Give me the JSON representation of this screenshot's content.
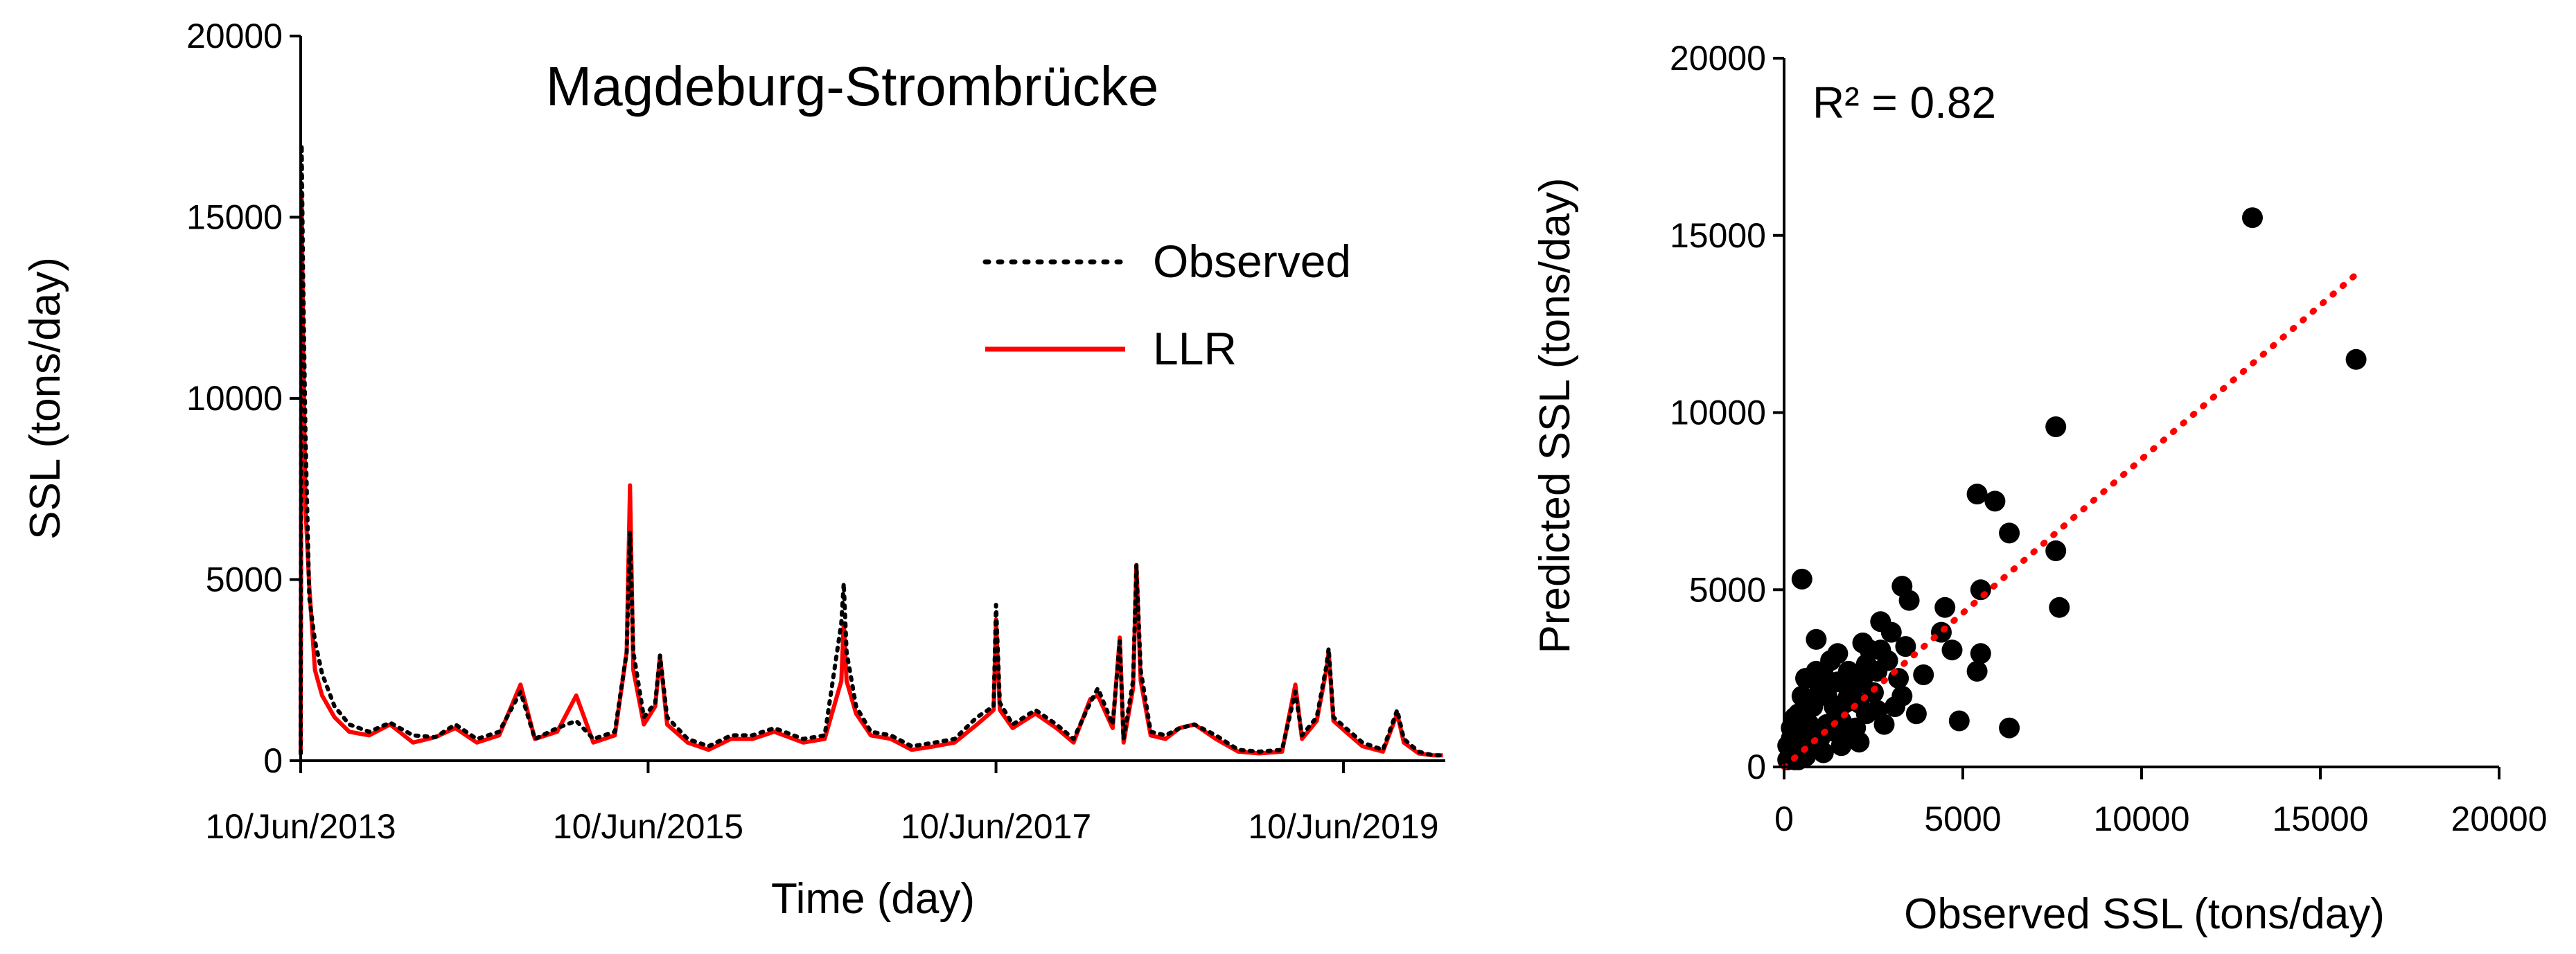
{
  "chart_data": [
    {
      "type": "line",
      "title": "Magdeburg-Strombrücke",
      "xlabel": "Time (day)",
      "ylabel": "SSL (tons/day)",
      "ylim": [
        0,
        20000
      ],
      "yticks": [
        "0",
        "5000",
        "10000",
        "15000",
        "20000"
      ],
      "xticks": [
        {
          "date": "2013-06-10",
          "label": "10/Jun/2013"
        },
        {
          "date": "2015-06-10",
          "label": "10/Jun/2015"
        },
        {
          "date": "2017-06-10",
          "label": "10/Jun/2017"
        },
        {
          "date": "2019-06-10",
          "label": "10/Jun/2019"
        }
      ],
      "xlim": [
        "2013-06-10",
        "2020-01-10"
      ],
      "legend_position": "upper-right",
      "grid": false,
      "series": [
        {
          "name": "Observed",
          "style": "dotted",
          "color": "#000000",
          "points": [
            [
              "2013-06-10",
              200
            ],
            [
              "2013-06-12",
              17000
            ],
            [
              "2013-06-15",
              13500
            ],
            [
              "2013-06-20",
              9000
            ],
            [
              "2013-06-28",
              4500
            ],
            [
              "2013-07-10",
              3300
            ],
            [
              "2013-07-25",
              2400
            ],
            [
              "2013-08-20",
              1500
            ],
            [
              "2013-09-20",
              1000
            ],
            [
              "2013-11-01",
              800
            ],
            [
              "2013-12-15",
              1050
            ],
            [
              "2014-02-01",
              700
            ],
            [
              "2014-03-20",
              650
            ],
            [
              "2014-05-01",
              1000
            ],
            [
              "2014-06-15",
              600
            ],
            [
              "2014-08-01",
              800
            ],
            [
              "2014-09-15",
              1900
            ],
            [
              "2014-10-15",
              600
            ],
            [
              "2014-12-01",
              900
            ],
            [
              "2015-01-10",
              1100
            ],
            [
              "2015-02-15",
              600
            ],
            [
              "2015-04-01",
              800
            ],
            [
              "2015-04-26",
              3000
            ],
            [
              "2015-05-03",
              6300
            ],
            [
              "2015-05-10",
              3000
            ],
            [
              "2015-06-01",
              1200
            ],
            [
              "2015-06-25",
              1600
            ],
            [
              "2015-07-05",
              2900
            ],
            [
              "2015-07-20",
              1200
            ],
            [
              "2015-09-01",
              600
            ],
            [
              "2015-10-15",
              400
            ],
            [
              "2015-12-01",
              700
            ],
            [
              "2016-01-15",
              700
            ],
            [
              "2016-03-01",
              900
            ],
            [
              "2016-05-01",
              600
            ],
            [
              "2016-06-15",
              700
            ],
            [
              "2016-07-20",
              3800
            ],
            [
              "2016-07-25",
              4900
            ],
            [
              "2016-07-31",
              3000
            ],
            [
              "2016-08-20",
              1500
            ],
            [
              "2016-09-20",
              800
            ],
            [
              "2016-11-01",
              700
            ],
            [
              "2016-12-15",
              400
            ],
            [
              "2017-02-01",
              500
            ],
            [
              "2017-03-15",
              600
            ],
            [
              "2017-05-01",
              1200
            ],
            [
              "2017-06-05",
              1500
            ],
            [
              "2017-06-10",
              4300
            ],
            [
              "2017-06-18",
              1600
            ],
            [
              "2017-07-15",
              1000
            ],
            [
              "2017-09-01",
              1400
            ],
            [
              "2017-10-15",
              1000
            ],
            [
              "2017-11-20",
              600
            ],
            [
              "2017-12-25",
              1600
            ],
            [
              "2018-01-10",
              2000
            ],
            [
              "2018-02-10",
              1000
            ],
            [
              "2018-02-25",
              3300
            ],
            [
              "2018-03-05",
              600
            ],
            [
              "2018-03-25",
              2200
            ],
            [
              "2018-04-01",
              5400
            ],
            [
              "2018-04-10",
              2500
            ],
            [
              "2018-05-01",
              800
            ],
            [
              "2018-06-01",
              700
            ],
            [
              "2018-07-01",
              900
            ],
            [
              "2018-08-01",
              1000
            ],
            [
              "2018-09-15",
              700
            ],
            [
              "2018-11-01",
              300
            ],
            [
              "2018-12-15",
              250
            ],
            [
              "2019-02-01",
              300
            ],
            [
              "2019-03-01",
              1900
            ],
            [
              "2019-03-15",
              700
            ],
            [
              "2019-04-15",
              1200
            ],
            [
              "2019-05-05",
              2600
            ],
            [
              "2019-05-10",
              3100
            ],
            [
              "2019-05-20",
              1200
            ],
            [
              "2019-06-15",
              900
            ],
            [
              "2019-07-20",
              500
            ],
            [
              "2019-09-01",
              300
            ],
            [
              "2019-10-01",
              1400
            ],
            [
              "2019-10-15",
              600
            ],
            [
              "2019-11-15",
              250
            ],
            [
              "2019-12-15",
              150
            ],
            [
              "2020-01-05",
              150
            ]
          ]
        },
        {
          "name": "LLR",
          "style": "solid",
          "color": "#ff0000",
          "points": [
            [
              "2013-06-10",
              200
            ],
            [
              "2013-06-12",
              15500
            ],
            [
              "2013-06-15",
              12000
            ],
            [
              "2013-06-20",
              7000
            ],
            [
              "2013-06-28",
              4800
            ],
            [
              "2013-07-10",
              2500
            ],
            [
              "2013-07-25",
              1800
            ],
            [
              "2013-08-20",
              1200
            ],
            [
              "2013-09-20",
              800
            ],
            [
              "2013-11-01",
              700
            ],
            [
              "2013-12-15",
              1000
            ],
            [
              "2014-02-01",
              500
            ],
            [
              "2014-03-20",
              650
            ],
            [
              "2014-05-01",
              900
            ],
            [
              "2014-06-15",
              500
            ],
            [
              "2014-08-01",
              700
            ],
            [
              "2014-09-15",
              2100
            ],
            [
              "2014-10-15",
              600
            ],
            [
              "2014-12-01",
              800
            ],
            [
              "2015-01-10",
              1800
            ],
            [
              "2015-02-15",
              500
            ],
            [
              "2015-04-01",
              700
            ],
            [
              "2015-04-26",
              3000
            ],
            [
              "2015-05-03",
              7600
            ],
            [
              "2015-05-10",
              2500
            ],
            [
              "2015-06-01",
              1000
            ],
            [
              "2015-06-25",
              1500
            ],
            [
              "2015-07-05",
              2900
            ],
            [
              "2015-07-20",
              1000
            ],
            [
              "2015-09-01",
              500
            ],
            [
              "2015-10-15",
              300
            ],
            [
              "2015-12-01",
              600
            ],
            [
              "2016-01-15",
              600
            ],
            [
              "2016-03-01",
              800
            ],
            [
              "2016-05-01",
              500
            ],
            [
              "2016-06-15",
              600
            ],
            [
              "2016-07-20",
              2200
            ],
            [
              "2016-07-25",
              3800
            ],
            [
              "2016-07-31",
              2200
            ],
            [
              "2016-08-20",
              1300
            ],
            [
              "2016-09-20",
              700
            ],
            [
              "2016-11-01",
              600
            ],
            [
              "2016-12-15",
              300
            ],
            [
              "2017-02-01",
              400
            ],
            [
              "2017-03-15",
              500
            ],
            [
              "2017-05-01",
              1000
            ],
            [
              "2017-06-05",
              1400
            ],
            [
              "2017-06-10",
              3900
            ],
            [
              "2017-06-18",
              1400
            ],
            [
              "2017-07-15",
              900
            ],
            [
              "2017-09-01",
              1300
            ],
            [
              "2017-10-15",
              900
            ],
            [
              "2017-11-20",
              500
            ],
            [
              "2017-12-25",
              1700
            ],
            [
              "2018-01-10",
              1800
            ],
            [
              "2018-02-10",
              900
            ],
            [
              "2018-02-25",
              3400
            ],
            [
              "2018-03-05",
              500
            ],
            [
              "2018-03-25",
              2000
            ],
            [
              "2018-04-01",
              5400
            ],
            [
              "2018-04-10",
              2200
            ],
            [
              "2018-05-01",
              700
            ],
            [
              "2018-06-01",
              600
            ],
            [
              "2018-07-01",
              900
            ],
            [
              "2018-08-01",
              1000
            ],
            [
              "2018-09-15",
              600
            ],
            [
              "2018-11-01",
              250
            ],
            [
              "2018-12-15",
              200
            ],
            [
              "2019-02-01",
              250
            ],
            [
              "2019-03-01",
              2100
            ],
            [
              "2019-03-15",
              600
            ],
            [
              "2019-04-15",
              1100
            ],
            [
              "2019-05-05",
              2500
            ],
            [
              "2019-05-10",
              3000
            ],
            [
              "2019-05-20",
              1100
            ],
            [
              "2019-06-15",
              800
            ],
            [
              "2019-07-20",
              400
            ],
            [
              "2019-09-01",
              250
            ],
            [
              "2019-10-01",
              1300
            ],
            [
              "2019-10-15",
              500
            ],
            [
              "2019-11-15",
              200
            ],
            [
              "2019-12-15",
              150
            ],
            [
              "2020-01-05",
              150
            ]
          ]
        }
      ]
    },
    {
      "type": "scatter",
      "title": "",
      "xlabel": "Observed SSL (tons/day)",
      "ylabel": "Predicted SSL (tons/day)",
      "xlim": [
        0,
        20000
      ],
      "ylim": [
        0,
        20000
      ],
      "xticks": [
        "0",
        "5000",
        "10000",
        "15000",
        "20000"
      ],
      "yticks": [
        "0",
        "5000",
        "10000",
        "15000",
        "20000"
      ],
      "annotation": "R² = 0.82",
      "grid": false,
      "trendline": {
        "style": "dotted",
        "color": "#ff0000",
        "from": [
          0,
          0
        ],
        "to": [
          16000,
          13900
        ]
      },
      "points": [
        [
          13100,
          15500
        ],
        [
          16000,
          11500
        ],
        [
          7600,
          9600
        ],
        [
          7600,
          6100
        ],
        [
          7700,
          4500
        ],
        [
          6300,
          6600
        ],
        [
          5400,
          7700
        ],
        [
          5900,
          7500
        ],
        [
          6300,
          1100
        ],
        [
          4900,
          1300
        ],
        [
          5500,
          5000
        ],
        [
          5400,
          2700
        ],
        [
          5500,
          3200
        ],
        [
          4700,
          3300
        ],
        [
          4500,
          4500
        ],
        [
          4400,
          3800
        ],
        [
          500,
          5300
        ],
        [
          3300,
          5100
        ],
        [
          3500,
          4700
        ],
        [
          3300,
          2000
        ],
        [
          3700,
          1500
        ],
        [
          2700,
          4100
        ],
        [
          3000,
          3800
        ],
        [
          2900,
          3000
        ],
        [
          2600,
          2700
        ],
        [
          2400,
          3300
        ],
        [
          2200,
          3500
        ],
        [
          2200,
          2500
        ],
        [
          2000,
          2300
        ],
        [
          1800,
          2000
        ],
        [
          2100,
          1800
        ],
        [
          2500,
          2100
        ],
        [
          1500,
          3200
        ],
        [
          1300,
          3000
        ],
        [
          900,
          3600
        ],
        [
          1100,
          2600
        ],
        [
          1500,
          2400
        ],
        [
          1700,
          1800
        ],
        [
          1400,
          1700
        ],
        [
          1200,
          2000
        ],
        [
          1000,
          2200
        ],
        [
          800,
          1700
        ],
        [
          900,
          2700
        ],
        [
          700,
          1200
        ],
        [
          600,
          2500
        ],
        [
          500,
          2000
        ],
        [
          400,
          1500
        ],
        [
          300,
          1400
        ],
        [
          200,
          1100
        ],
        [
          200,
          800
        ],
        [
          100,
          600
        ],
        [
          300,
          400
        ],
        [
          500,
          700
        ],
        [
          400,
          900
        ],
        [
          700,
          600
        ],
        [
          800,
          1000
        ],
        [
          1000,
          800
        ],
        [
          1200,
          1200
        ],
        [
          1400,
          1000
        ],
        [
          1600,
          1300
        ],
        [
          2000,
          1100
        ],
        [
          2300,
          1500
        ],
        [
          2600,
          1600
        ],
        [
          2800,
          1200
        ],
        [
          3100,
          1700
        ],
        [
          1900,
          900
        ],
        [
          1100,
          400
        ],
        [
          600,
          300
        ],
        [
          300,
          200
        ],
        [
          100,
          200
        ],
        [
          200,
          300
        ],
        [
          400,
          200
        ],
        [
          1800,
          2700
        ],
        [
          2300,
          2900
        ],
        [
          2700,
          3300
        ],
        [
          3200,
          2500
        ],
        [
          3400,
          3400
        ],
        [
          3900,
          2600
        ],
        [
          1600,
          600
        ],
        [
          2100,
          700
        ]
      ]
    }
  ]
}
